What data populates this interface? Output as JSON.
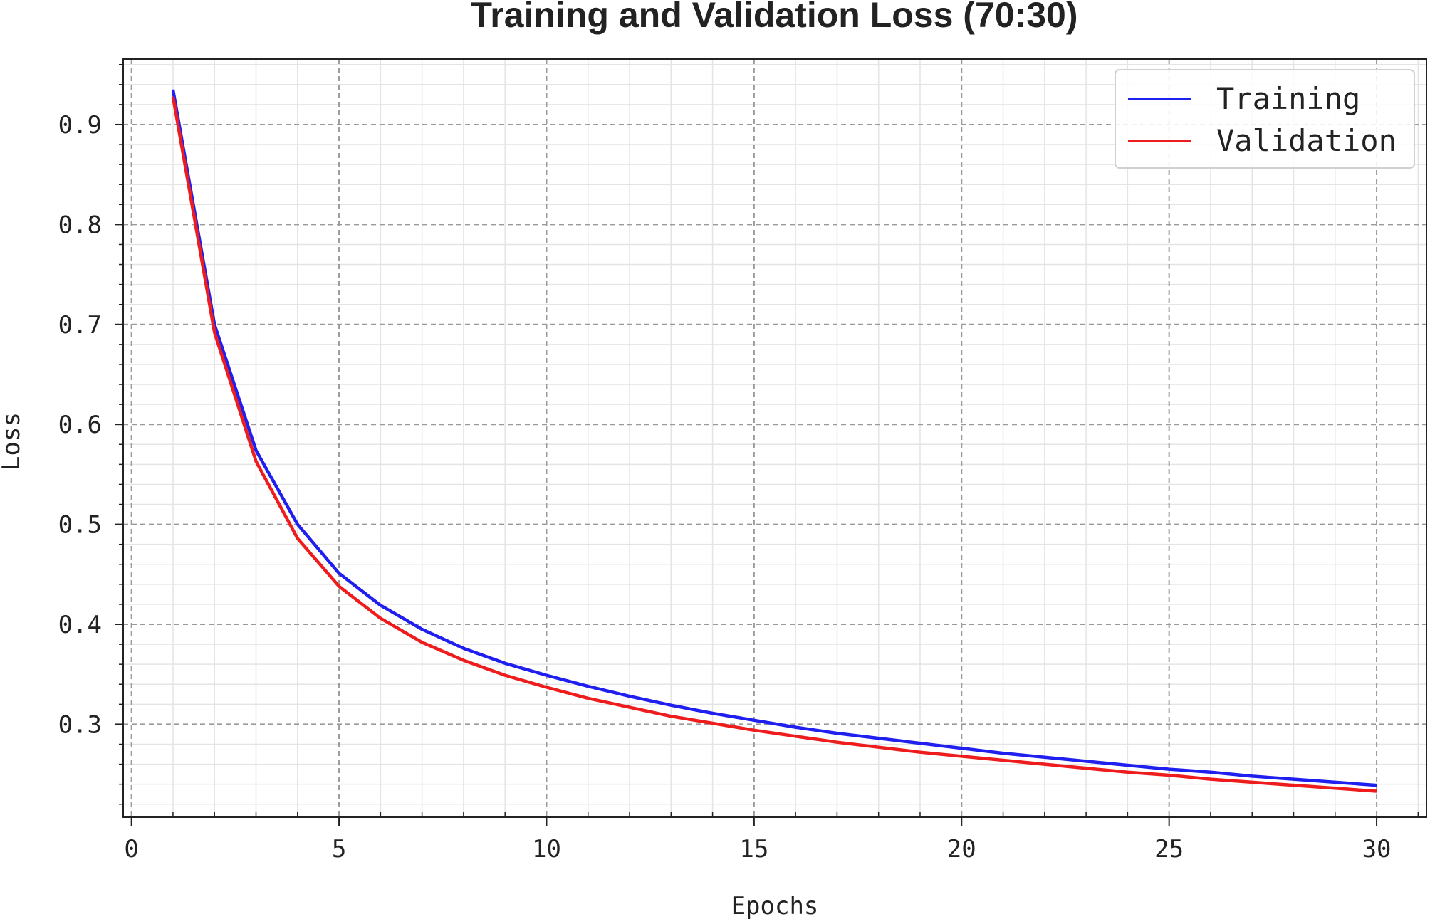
{
  "chart_data": {
    "type": "line",
    "title": "Training and Validation Loss (70:30)",
    "xlabel": "Epochs",
    "ylabel": "Loss",
    "xlim": [
      -0.2,
      31.2
    ],
    "ylim": [
      0.207,
      0.9655
    ],
    "xticks": [
      0,
      5,
      10,
      15,
      20,
      25,
      30
    ],
    "xtick_labels": [
      "0",
      "5",
      "10",
      "15",
      "20",
      "25",
      "30"
    ],
    "yticks": [
      0.3,
      0.4,
      0.5,
      0.6,
      0.7,
      0.8,
      0.9
    ],
    "ytick_labels": [
      "0.3",
      "0.4",
      "0.5",
      "0.6",
      "0.7",
      "0.8",
      "0.9"
    ],
    "grid": true,
    "minor_grid": true,
    "legend_position": "top-right",
    "x": [
      1,
      2,
      3,
      4,
      5,
      6,
      7,
      8,
      9,
      10,
      11,
      12,
      13,
      14,
      15,
      16,
      17,
      18,
      19,
      20,
      21,
      22,
      23,
      24,
      25,
      26,
      27,
      28,
      29,
      30
    ],
    "series": [
      {
        "name": "Training",
        "color": "#1f1ff0",
        "values": [
          0.935,
          0.7,
          0.574,
          0.5,
          0.451,
          0.419,
          0.395,
          0.376,
          0.361,
          0.349,
          0.338,
          0.328,
          0.319,
          0.311,
          0.304,
          0.297,
          0.291,
          0.286,
          0.281,
          0.276,
          0.271,
          0.267,
          0.263,
          0.259,
          0.255,
          0.252,
          0.248,
          0.245,
          0.242,
          0.239
        ]
      },
      {
        "name": "Validation",
        "color": "#ee1c1c",
        "values": [
          0.928,
          0.692,
          0.563,
          0.486,
          0.438,
          0.406,
          0.382,
          0.364,
          0.349,
          0.337,
          0.326,
          0.317,
          0.308,
          0.301,
          0.294,
          0.288,
          0.282,
          0.277,
          0.272,
          0.268,
          0.264,
          0.26,
          0.256,
          0.252,
          0.249,
          0.245,
          0.242,
          0.239,
          0.236,
          0.233
        ]
      }
    ]
  }
}
